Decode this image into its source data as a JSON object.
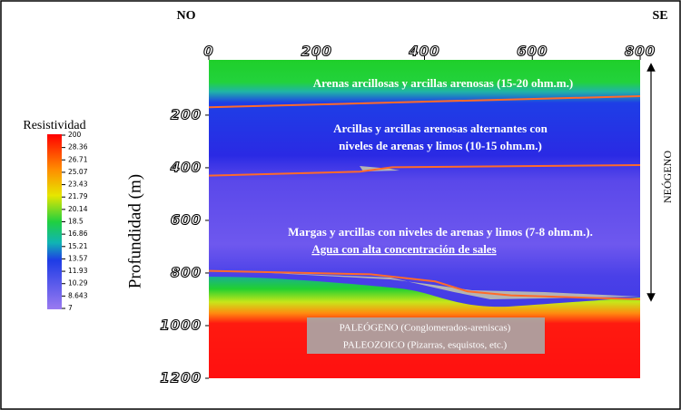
{
  "chart_data": {
    "type": "section",
    "left_label": "NO",
    "right_label": "SE",
    "y_label": "Profundidad (m)",
    "side_label": "NEÓGENO",
    "xlim": [
      0,
      800
    ],
    "xticks": [
      0,
      200,
      400,
      600,
      800
    ],
    "ylim": [
      1200,
      -10
    ],
    "yticks": [
      200,
      400,
      600,
      800,
      1000,
      1200
    ],
    "colorbar": {
      "title": "Resistividad",
      "ticks": [
        200,
        28.36,
        26.71,
        25.07,
        23.43,
        21.79,
        20.14,
        18.5,
        16.86,
        15.21,
        13.57,
        11.93,
        10.29,
        8.643,
        7
      ]
    },
    "boundary_color": "#ff6a2a",
    "boundaries": [
      {
        "x": [
          0,
          800
        ],
        "values": [
          170,
          128
        ]
      },
      {
        "x": [
          0,
          280,
          340,
          800
        ],
        "values": [
          430,
          415,
          398,
          390
        ]
      },
      {
        "x": [
          0,
          300,
          420,
          480,
          560,
          800
        ],
        "values": [
          792,
          805,
          832,
          870,
          885,
          900
        ]
      }
    ],
    "annotations": [
      "Arenas arcillosas y arcillas arenosas (15-20 ohm.m.)",
      "Arcillas y arcillas arenosas alternantes con",
      "niveles de arenas y limos (10-15 ohm.m.)",
      "Margas y arcillas con niveles de arenas y limos (7-8 ohm.m.).",
      "Agua con alta concentración de sales",
      "PALEÓGENO (Conglomerados-areniscas)",
      "PALEOZOICO (Pizarras, esquistos, etc.)"
    ]
  }
}
